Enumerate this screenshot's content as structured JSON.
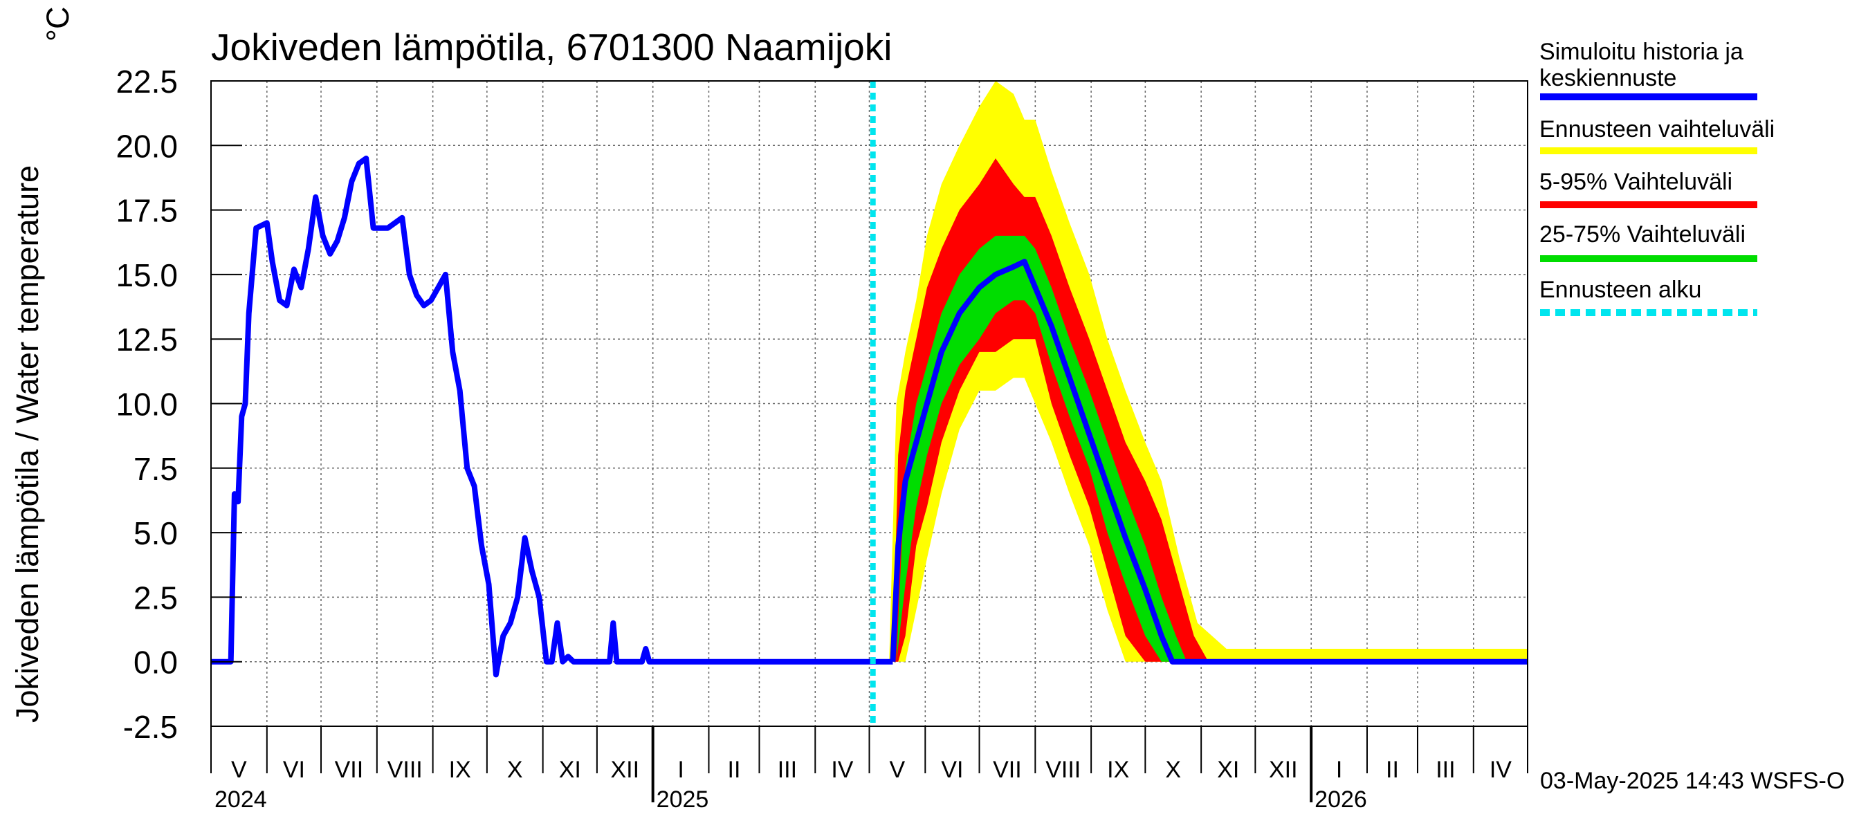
{
  "chart_data": {
    "type": "line",
    "title": "Jokiveden lämpötila, 6701300 Naamijoki",
    "ylabel": "Jokiveden lämpötila / Water temperature",
    "yunit": "°C",
    "ylim": [
      -2.5,
      22.5
    ],
    "yticks": [
      "22.5",
      "20.0",
      "17.5",
      "15.0",
      "12.5",
      "10.0",
      "7.5",
      "5.0",
      "2.5",
      "0.0",
      "-2.5"
    ],
    "xlim": [
      "2024-05-01",
      "2026-05-01"
    ],
    "forecast_start": "2025-05-03",
    "months": [
      "V",
      "VI",
      "VII",
      "VIII",
      "IX",
      "X",
      "XI",
      "XII",
      "I",
      "II",
      "III",
      "IV",
      "V",
      "VI",
      "VII",
      "VIII",
      "IX",
      "X",
      "XI",
      "XII",
      "I",
      "II",
      "III",
      "IV"
    ],
    "years": [
      {
        "label": "2024",
        "date": "2024-05-01"
      },
      {
        "label": "2025",
        "date": "2025-01-01"
      },
      {
        "label": "2026",
        "date": "2026-01-01"
      }
    ],
    "grid": true,
    "legend_position": "right",
    "series": [
      {
        "name": "Simuloitu historia ja keskiennuste",
        "color": "#0000ff",
        "x": [
          "2024-05-01",
          "2024-05-12",
          "2024-05-14",
          "2024-05-16",
          "2024-05-18",
          "2024-05-20",
          "2024-05-22",
          "2024-05-26",
          "2024-06-01",
          "2024-06-04",
          "2024-06-08",
          "2024-06-12",
          "2024-06-16",
          "2024-06-20",
          "2024-06-24",
          "2024-06-28",
          "2024-07-02",
          "2024-07-06",
          "2024-07-10",
          "2024-07-14",
          "2024-07-18",
          "2024-07-22",
          "2024-07-26",
          "2024-07-30",
          "2024-08-03",
          "2024-08-07",
          "2024-08-11",
          "2024-08-15",
          "2024-08-19",
          "2024-08-23",
          "2024-08-27",
          "2024-08-31",
          "2024-09-04",
          "2024-09-08",
          "2024-09-12",
          "2024-09-16",
          "2024-09-20",
          "2024-09-24",
          "2024-09-28",
          "2024-10-02",
          "2024-10-06",
          "2024-10-10",
          "2024-10-14",
          "2024-10-18",
          "2024-10-22",
          "2024-10-26",
          "2024-10-30",
          "2024-11-03",
          "2024-11-06",
          "2024-11-09",
          "2024-11-12",
          "2024-11-15",
          "2024-11-18",
          "2024-11-22",
          "2024-12-01",
          "2024-12-08",
          "2024-12-10",
          "2024-12-12",
          "2024-12-26",
          "2024-12-28",
          "2024-12-30",
          "2025-05-03",
          "2025-05-14"
        ],
        "y": [
          0.0,
          0.0,
          6.5,
          6.2,
          9.5,
          10.0,
          13.5,
          16.8,
          17.0,
          15.5,
          14.0,
          13.8,
          15.2,
          14.5,
          16.0,
          18.0,
          16.5,
          15.8,
          16.3,
          17.2,
          18.6,
          19.3,
          19.5,
          16.8,
          16.8,
          16.8,
          17.0,
          17.2,
          15.0,
          14.2,
          13.8,
          14.0,
          14.5,
          15.0,
          12.0,
          10.5,
          7.5,
          6.8,
          4.5,
          3.0,
          -0.5,
          1.0,
          1.5,
          2.5,
          4.8,
          3.5,
          2.5,
          0.0,
          0.0,
          1.5,
          0.0,
          0.2,
          0.0,
          0.0,
          0.0,
          0.0,
          1.5,
          0.0,
          0.0,
          0.5,
          0.0,
          0.0,
          0.0
        ]
      },
      {
        "name": "Ennusteen vaihteluväli",
        "color": "#ffff00",
        "x": [
          "2025-05-12",
          "2025-05-16",
          "2025-05-21",
          "2025-05-27",
          "2025-06-02",
          "2025-06-10",
          "2025-06-20",
          "2025-07-01",
          "2025-07-10",
          "2025-07-20",
          "2025-07-26",
          "2025-08-01",
          "2025-08-10",
          "2025-08-20",
          "2025-08-31",
          "2025-09-10",
          "2025-09-20",
          "2025-10-01",
          "2025-10-10",
          "2025-10-20",
          "2025-10-30",
          "2025-11-15",
          "2025-12-20",
          "2026-05-01"
        ],
        "upper": [
          0.0,
          10.0,
          12.0,
          14.0,
          16.5,
          18.5,
          20.0,
          21.5,
          22.5,
          22.0,
          21.0,
          21.0,
          19.0,
          17.0,
          15.0,
          12.5,
          10.5,
          8.5,
          7.0,
          4.0,
          1.5,
          0.5,
          0.5,
          0.5
        ],
        "lower": [
          0.0,
          0.0,
          0.0,
          2.0,
          4.0,
          6.5,
          9.0,
          10.5,
          10.5,
          11.0,
          11.0,
          10.0,
          8.5,
          6.5,
          4.5,
          2.0,
          0.0,
          0.0,
          0.0,
          0.0,
          0.0,
          0.0,
          0.0,
          0.0
        ]
      },
      {
        "name": "5-95% Vaihteluväli",
        "color": "#ff0000",
        "x": [
          "2025-05-14",
          "2025-05-17",
          "2025-05-21",
          "2025-05-27",
          "2025-06-02",
          "2025-06-10",
          "2025-06-20",
          "2025-07-01",
          "2025-07-10",
          "2025-07-20",
          "2025-07-26",
          "2025-08-01",
          "2025-08-10",
          "2025-08-20",
          "2025-08-31",
          "2025-09-10",
          "2025-09-20",
          "2025-10-01",
          "2025-10-10",
          "2025-10-20",
          "2025-10-28",
          "2025-11-05",
          "2026-05-01"
        ],
        "upper": [
          0.0,
          8.0,
          10.5,
          12.5,
          14.5,
          16.0,
          17.5,
          18.5,
          19.5,
          18.5,
          18.0,
          18.0,
          16.5,
          14.5,
          12.5,
          10.5,
          8.5,
          7.0,
          5.5,
          3.0,
          1.0,
          0.0,
          0.0
        ],
        "lower": [
          0.0,
          0.0,
          1.0,
          4.5,
          6.0,
          8.5,
          10.5,
          12.0,
          12.0,
          12.5,
          12.5,
          12.5,
          10.0,
          8.0,
          6.0,
          3.5,
          1.0,
          0.0,
          0.0,
          0.0,
          0.0,
          0.0,
          0.0
        ]
      },
      {
        "name": "25-75% Vaihteluväli",
        "color": "#00dd00",
        "x": [
          "2025-05-16",
          "2025-05-21",
          "2025-05-27",
          "2025-06-02",
          "2025-06-10",
          "2025-06-20",
          "2025-07-01",
          "2025-07-10",
          "2025-07-20",
          "2025-07-26",
          "2025-08-01",
          "2025-08-10",
          "2025-08-20",
          "2025-08-31",
          "2025-09-10",
          "2025-09-20",
          "2025-10-01",
          "2025-10-10",
          "2025-10-18",
          "2025-10-24",
          "2026-05-01"
        ],
        "upper": [
          0.0,
          7.5,
          10.0,
          11.5,
          13.5,
          15.0,
          16.0,
          16.5,
          16.5,
          16.5,
          16.0,
          14.5,
          12.5,
          10.5,
          8.5,
          6.5,
          4.5,
          2.5,
          1.0,
          0.0,
          0.0
        ],
        "lower": [
          0.0,
          3.0,
          6.0,
          8.0,
          10.0,
          11.5,
          12.5,
          13.5,
          14.0,
          14.0,
          13.5,
          11.5,
          9.5,
          7.5,
          5.0,
          3.0,
          1.0,
          0.0,
          0.0,
          0.0,
          0.0
        ]
      },
      {
        "name": "Ennusteen alku",
        "color": "#00e5ee"
      },
      {
        "name": "Keskiennuste",
        "color": "#0000ff",
        "x": [
          "2025-05-14",
          "2025-05-17",
          "2025-05-21",
          "2025-05-27",
          "2025-06-02",
          "2025-06-10",
          "2025-06-20",
          "2025-07-01",
          "2025-07-10",
          "2025-07-20",
          "2025-07-26",
          "2025-08-01",
          "2025-08-10",
          "2025-08-20",
          "2025-08-31",
          "2025-09-10",
          "2025-09-20",
          "2025-10-01",
          "2025-10-10",
          "2025-10-16",
          "2025-10-20",
          "2025-10-25",
          "2026-05-01"
        ],
        "y": [
          0.0,
          4.5,
          7.0,
          8.5,
          10.0,
          12.0,
          13.5,
          14.5,
          15.0,
          15.3,
          15.5,
          14.5,
          13.0,
          11.0,
          8.8,
          6.8,
          4.8,
          2.8,
          1.0,
          0.0,
          0.0,
          0.0,
          0.0
        ]
      }
    ]
  },
  "legend": [
    {
      "label": "Simuloitu historia ja keskiennuste",
      "color": "#0000ff",
      "dashed": false
    },
    {
      "label": "Ennusteen vaihteluväli",
      "color": "#ffff00",
      "dashed": false
    },
    {
      "label": "5-95% Vaihteluväli",
      "color": "#ff0000",
      "dashed": false
    },
    {
      "label": "25-75% Vaihteluväli",
      "color": "#00dd00",
      "dashed": false
    },
    {
      "label": "Ennusteen alku",
      "color": "#00e5ee",
      "dashed": true
    }
  ],
  "footer": "03-May-2025 14:43 WSFS-O"
}
